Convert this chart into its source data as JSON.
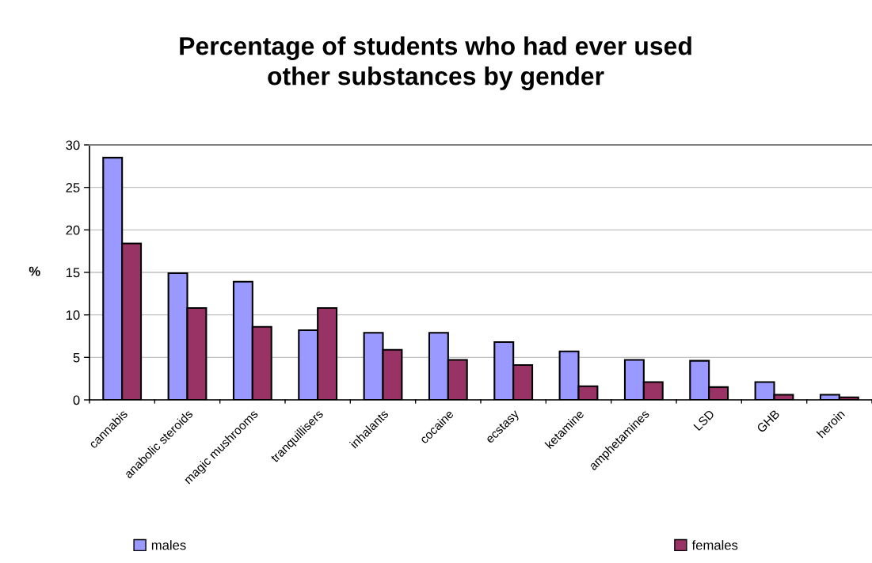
{
  "chart_data": {
    "type": "bar",
    "title": "Percentage of students who had ever used\nother substances by gender",
    "ylabel": "%",
    "categories": [
      "cannabis",
      "anabolic steroids",
      "magic mushrooms",
      "tranquillisers",
      "inhalants",
      "cocaine",
      "ecstasy",
      "ketamine",
      "amphetamines",
      "LSD",
      "GHB",
      "heroin"
    ],
    "series": [
      {
        "name": "males",
        "color": "#9999ff",
        "values": [
          28.5,
          14.9,
          13.9,
          8.2,
          7.9,
          7.9,
          6.8,
          5.7,
          4.7,
          4.6,
          2.1,
          0.6
        ]
      },
      {
        "name": "females",
        "color": "#993366",
        "values": [
          18.4,
          10.8,
          8.6,
          10.8,
          5.9,
          4.7,
          4.1,
          1.6,
          2.1,
          1.5,
          0.6,
          0.3
        ]
      }
    ],
    "ylim": [
      0,
      30
    ],
    "yticks": [
      0,
      5,
      10,
      15,
      20,
      25,
      30
    ],
    "grid": "y",
    "legend": "bottom"
  }
}
